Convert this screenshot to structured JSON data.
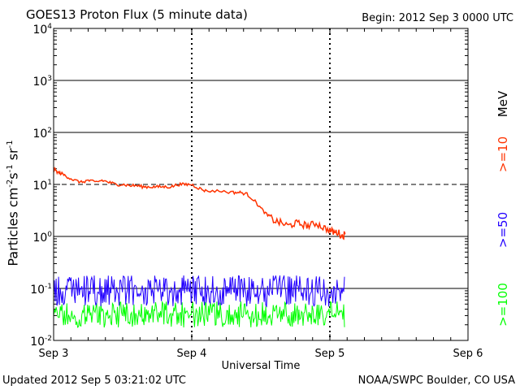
{
  "header": {
    "title": "GOES13 Proton Flux (5 minute data)",
    "begin": "Begin: 2012 Sep 3 0000 UTC"
  },
  "footer": {
    "updated": "Updated 2012 Sep  5 03:21:02 UTC",
    "credit": "NOAA/SWPC Boulder, CO USA"
  },
  "colors": {
    "ge10": "#ff3300",
    "ge50": "#2200ff",
    "ge100": "#00ff00"
  },
  "chart_data": {
    "type": "line",
    "title": "GOES13 Proton Flux (5 minute data)",
    "xlabel": "Universal Time",
    "ylabel_parts": [
      "Particles cm",
      "-2",
      "s",
      "-1",
      "sr",
      "-1"
    ],
    "y_scale": "log",
    "ylim_exp": [
      -2,
      4
    ],
    "y_tick_labels": [
      {
        "exp": -2,
        "base": "10",
        "sup": "-2"
      },
      {
        "exp": -1,
        "base": "10",
        "sup": "-1"
      },
      {
        "exp": 0,
        "base": "10",
        "sup": "0"
      },
      {
        "exp": 1,
        "base": "10",
        "sup": "1"
      },
      {
        "exp": 2,
        "base": "10",
        "sup": "2"
      },
      {
        "exp": 3,
        "base": "10",
        "sup": "3"
      },
      {
        "exp": 4,
        "base": "10",
        "sup": "4"
      }
    ],
    "x_tick_labels": [
      "Sep 3",
      "Sep 4",
      "Sep 5",
      "Sep 6"
    ],
    "xlim_days": [
      0,
      3
    ],
    "threshold": 10,
    "energy_unit": "MeV",
    "series": [
      {
        "name": ">=10",
        "color": "#ff3300",
        "points": [
          [
            0.0,
            20
          ],
          [
            0.03,
            17
          ],
          [
            0.06,
            16
          ],
          [
            0.1,
            14
          ],
          [
            0.15,
            12
          ],
          [
            0.2,
            11
          ],
          [
            0.25,
            12
          ],
          [
            0.3,
            11
          ],
          [
            0.35,
            12
          ],
          [
            0.4,
            11
          ],
          [
            0.45,
            10
          ],
          [
            0.5,
            10
          ],
          [
            0.55,
            9.5
          ],
          [
            0.6,
            9.5
          ],
          [
            0.65,
            9
          ],
          [
            0.7,
            9
          ],
          [
            0.75,
            9
          ],
          [
            0.8,
            9
          ],
          [
            0.85,
            9
          ],
          [
            0.9,
            10
          ],
          [
            0.95,
            10
          ],
          [
            1.0,
            10
          ],
          [
            1.05,
            8.5
          ],
          [
            1.1,
            7.5
          ],
          [
            1.2,
            7.5
          ],
          [
            1.3,
            7
          ],
          [
            1.35,
            7
          ],
          [
            1.4,
            6.5
          ],
          [
            1.45,
            5
          ],
          [
            1.5,
            3.5
          ],
          [
            1.55,
            2.5
          ],
          [
            1.6,
            2.0
          ],
          [
            1.65,
            1.8
          ],
          [
            1.7,
            1.6
          ],
          [
            1.75,
            1.8
          ],
          [
            1.8,
            1.7
          ],
          [
            1.85,
            1.6
          ],
          [
            1.9,
            1.8
          ],
          [
            1.95,
            1.5
          ],
          [
            2.0,
            1.3
          ],
          [
            2.03,
            1.2
          ],
          [
            2.06,
            1.2
          ],
          [
            2.09,
            1.0
          ],
          [
            2.11,
            1.1
          ]
        ]
      },
      {
        "name": ">=50",
        "color": "#2200ff",
        "band": [
          -1.35,
          -0.75
        ],
        "x_range": [
          0,
          2.11
        ]
      },
      {
        "name": ">=100",
        "color": "#00ff00",
        "band": [
          -1.75,
          -1.25
        ],
        "x_range": [
          0,
          2.11
        ]
      }
    ],
    "grid": true,
    "legend": "right side, rotated"
  }
}
